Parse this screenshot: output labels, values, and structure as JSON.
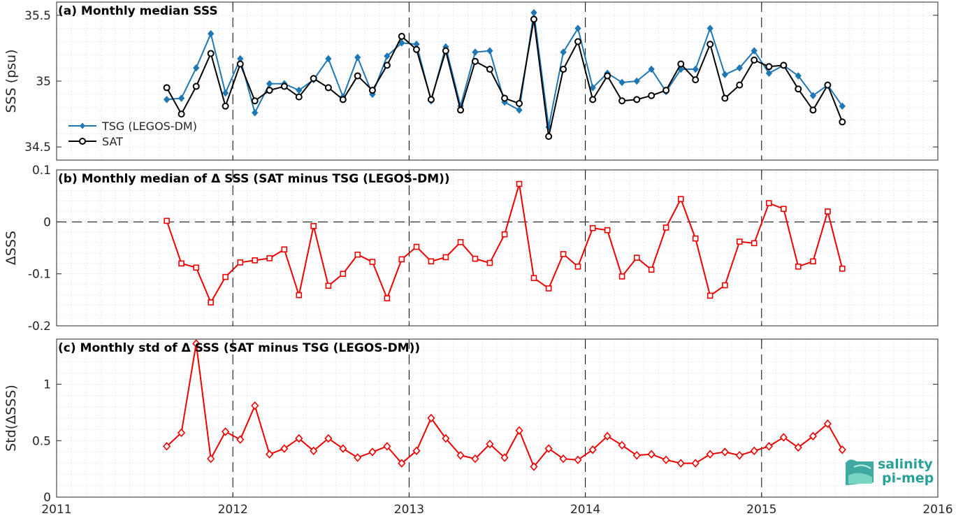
{
  "chart_data": [
    {
      "type": "line",
      "title": "(a) Monthly median SSS",
      "ylabel": "SSS (psu)",
      "xlim": [
        2011,
        2016
      ],
      "ylim": [
        34.4,
        35.6
      ],
      "yticks": [
        "34.5",
        "35",
        "35.5"
      ],
      "ytick_values": [
        34.5,
        35,
        35.5
      ],
      "grid": true,
      "legend": "left",
      "series": [
        {
          "name": "TSG (LEGOS-DM)",
          "color": "#1f77b4",
          "marker": "diamond",
          "x": [
            2011.625,
            2011.708,
            2011.792,
            2011.875,
            2011.958,
            2012.042,
            2012.125,
            2012.208,
            2012.292,
            2012.375,
            2012.458,
            2012.542,
            2012.625,
            2012.708,
            2012.792,
            2012.875,
            2012.958,
            2013.042,
            2013.125,
            2013.208,
            2013.292,
            2013.375,
            2013.458,
            2013.542,
            2013.625,
            2013.708,
            2013.792,
            2013.875,
            2013.958,
            2014.042,
            2014.125,
            2014.208,
            2014.292,
            2014.375,
            2014.458,
            2014.542,
            2014.625,
            2014.708,
            2014.792,
            2014.875,
            2014.958,
            2015.042,
            2015.125,
            2015.208,
            2015.292,
            2015.375,
            2015.458
          ],
          "y": [
            34.86,
            34.87,
            35.1,
            35.36,
            34.91,
            35.17,
            34.76,
            34.98,
            34.98,
            34.93,
            35.01,
            35.17,
            34.88,
            35.18,
            34.9,
            35.19,
            35.29,
            35.28,
            34.85,
            35.26,
            34.81,
            35.22,
            35.23,
            34.84,
            34.78,
            35.52,
            34.65,
            35.22,
            35.4,
            34.95,
            35.06,
            34.99,
            35.0,
            35.09,
            34.92,
            35.09,
            35.09,
            35.4,
            35.05,
            35.1,
            35.23,
            35.06,
            35.12,
            35.04,
            34.89,
            34.97,
            34.81
          ]
        },
        {
          "name": "SAT",
          "color": "#000000",
          "marker": "circle",
          "x": [
            2011.625,
            2011.708,
            2011.792,
            2011.875,
            2011.958,
            2012.042,
            2012.125,
            2012.208,
            2012.292,
            2012.375,
            2012.458,
            2012.542,
            2012.625,
            2012.708,
            2012.792,
            2012.875,
            2012.958,
            2013.042,
            2013.125,
            2013.208,
            2013.292,
            2013.375,
            2013.458,
            2013.542,
            2013.625,
            2013.708,
            2013.792,
            2013.875,
            2013.958,
            2014.042,
            2014.125,
            2014.208,
            2014.292,
            2014.375,
            2014.458,
            2014.542,
            2014.625,
            2014.708,
            2014.792,
            2014.875,
            2014.958,
            2015.042,
            2015.125,
            2015.208,
            2015.292,
            2015.375,
            2015.458
          ],
          "y": [
            34.95,
            34.75,
            34.96,
            35.21,
            34.81,
            35.13,
            34.85,
            34.93,
            34.96,
            34.88,
            35.02,
            34.95,
            34.86,
            35.04,
            34.93,
            35.12,
            35.34,
            35.24,
            34.86,
            35.23,
            34.78,
            35.15,
            35.09,
            34.87,
            34.83,
            35.47,
            34.58,
            35.09,
            35.3,
            34.86,
            35.04,
            34.85,
            34.86,
            34.89,
            34.93,
            35.13,
            35.01,
            35.28,
            34.87,
            34.97,
            35.16,
            35.11,
            35.12,
            34.94,
            34.78,
            34.97,
            34.69
          ]
        }
      ]
    },
    {
      "type": "line",
      "title": "(b) Monthly median of Δ SSS (SAT minus TSG (LEGOS-DM))",
      "ylabel": "ΔSSS",
      "xlim": [
        2011,
        2016
      ],
      "ylim": [
        -0.2,
        0.1
      ],
      "yticks": [
        "-0.2",
        "-0.1",
        "0",
        "0.1"
      ],
      "ytick_values": [
        -0.2,
        -0.1,
        0,
        0.1
      ],
      "zero_line": true,
      "grid": true,
      "series": [
        {
          "color": "#ee0000",
          "marker": "square",
          "x": [
            2011.625,
            2011.708,
            2011.792,
            2011.875,
            2011.958,
            2012.042,
            2012.125,
            2012.208,
            2012.292,
            2012.375,
            2012.458,
            2012.542,
            2012.625,
            2012.708,
            2012.792,
            2012.875,
            2012.958,
            2013.042,
            2013.125,
            2013.208,
            2013.292,
            2013.375,
            2013.458,
            2013.542,
            2013.625,
            2013.708,
            2013.792,
            2013.875,
            2013.958,
            2014.042,
            2014.125,
            2014.208,
            2014.292,
            2014.375,
            2014.458,
            2014.542,
            2014.625,
            2014.708,
            2014.792,
            2014.875,
            2014.958,
            2015.042,
            2015.125,
            2015.208,
            2015.292,
            2015.375,
            2015.458
          ],
          "y": [
            0.002,
            -0.08,
            -0.088,
            -0.155,
            -0.106,
            -0.078,
            -0.074,
            -0.07,
            -0.053,
            -0.141,
            -0.008,
            -0.123,
            -0.1,
            -0.063,
            -0.077,
            -0.147,
            -0.072,
            -0.048,
            -0.076,
            -0.068,
            -0.039,
            -0.071,
            -0.079,
            -0.024,
            0.073,
            -0.108,
            -0.128,
            -0.062,
            -0.086,
            -0.012,
            -0.016,
            -0.105,
            -0.069,
            -0.092,
            -0.011,
            0.044,
            -0.032,
            -0.142,
            -0.122,
            -0.038,
            -0.041,
            0.036,
            0.025,
            -0.086,
            -0.076,
            0.02,
            -0.09
          ]
        }
      ]
    },
    {
      "type": "line",
      "title": "(c) Monthly std of Δ SSS (SAT minus TSG (LEGOS-DM))",
      "ylabel": "Std(ΔSSS)",
      "xlim": [
        2011,
        2016
      ],
      "ylim": [
        0,
        1.4
      ],
      "yticks": [
        "0",
        "0.5",
        "1"
      ],
      "ytick_values": [
        0,
        0.5,
        1
      ],
      "xticks": [
        "2011",
        "2012",
        "2013",
        "2014",
        "2015",
        "2016"
      ],
      "xtick_values": [
        2011,
        2012,
        2013,
        2014,
        2015,
        2016
      ],
      "grid": true,
      "series": [
        {
          "color": "#ee0000",
          "marker": "diamond-open",
          "x": [
            2011.625,
            2011.708,
            2011.792,
            2011.875,
            2011.958,
            2012.042,
            2012.125,
            2012.208,
            2012.292,
            2012.375,
            2012.458,
            2012.542,
            2012.625,
            2012.708,
            2012.792,
            2012.875,
            2012.958,
            2013.042,
            2013.125,
            2013.208,
            2013.292,
            2013.375,
            2013.458,
            2013.542,
            2013.625,
            2013.708,
            2013.792,
            2013.875,
            2013.958,
            2014.042,
            2014.125,
            2014.208,
            2014.292,
            2014.375,
            2014.458,
            2014.542,
            2014.625,
            2014.708,
            2014.792,
            2014.875,
            2014.958,
            2015.042,
            2015.125,
            2015.208,
            2015.292,
            2015.375,
            2015.458
          ],
          "y": [
            0.45,
            0.57,
            1.36,
            0.34,
            0.58,
            0.51,
            0.81,
            0.38,
            0.43,
            0.52,
            0.41,
            0.52,
            0.43,
            0.35,
            0.4,
            0.45,
            0.3,
            0.41,
            0.7,
            0.52,
            0.37,
            0.34,
            0.47,
            0.35,
            0.59,
            0.27,
            0.43,
            0.34,
            0.33,
            0.42,
            0.54,
            0.46,
            0.37,
            0.38,
            0.33,
            0.3,
            0.3,
            0.38,
            0.4,
            0.37,
            0.41,
            0.45,
            0.53,
            0.44,
            0.54,
            0.65,
            0.42
          ]
        }
      ]
    }
  ],
  "logo": {
    "line1": "salinity",
    "line2": "pi-mep",
    "color": "#2aa198"
  }
}
